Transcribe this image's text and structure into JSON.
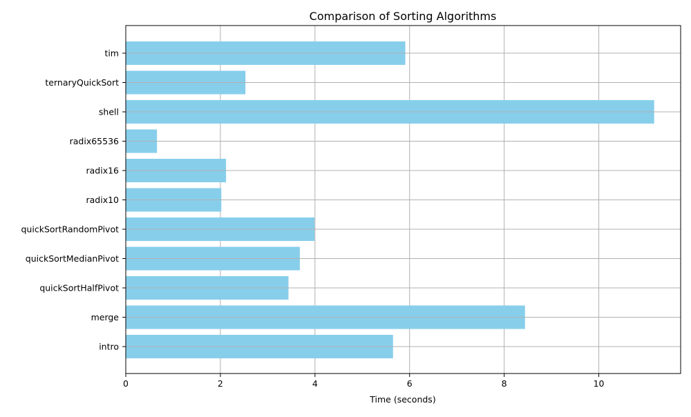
{
  "chart_data": {
    "type": "bar",
    "orientation": "horizontal",
    "title": "Comparison of Sorting Algorithms",
    "xlabel": "Time (seconds)",
    "ylabel": "",
    "categories": [
      "intro",
      "merge",
      "quickSortHalfPivot",
      "quickSortMedianPivot",
      "quickSortRandomPivot",
      "radix10",
      "radix16",
      "radix65536",
      "shell",
      "ternaryQuickSort",
      "tim"
    ],
    "values": [
      5.65,
      8.44,
      3.44,
      3.68,
      3.99,
      2.02,
      2.12,
      0.66,
      11.17,
      2.53,
      5.91
    ],
    "xlim": [
      0,
      11.73
    ],
    "xticks": [
      "0",
      "2",
      "4",
      "6",
      "8",
      "10"
    ],
    "grid": true,
    "bar_color": "#87ceeb",
    "grid_color": "#b0b0b0"
  }
}
